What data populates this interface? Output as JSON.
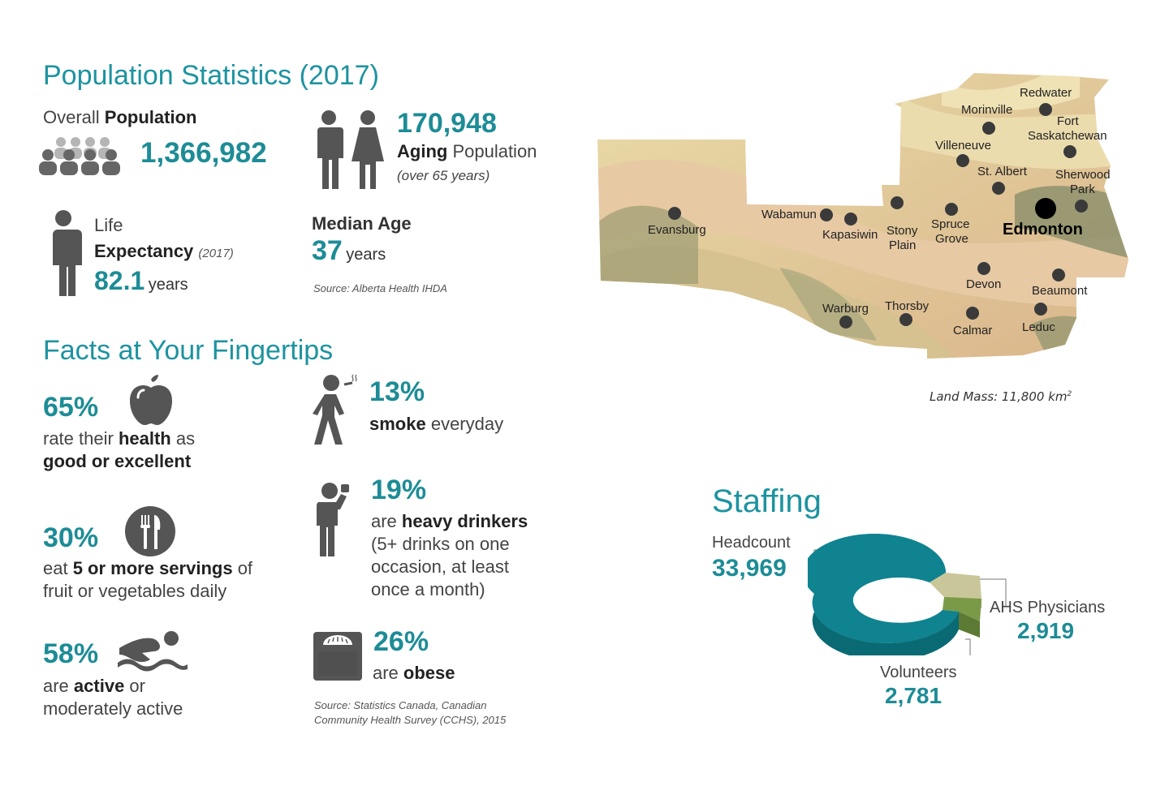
{
  "population": {
    "title": "Population Statistics (2017)",
    "overall_label_light": "Overall ",
    "overall_label_bold": "Population",
    "overall_value": "1,366,982",
    "aging_value": "170,948",
    "aging_bold": "Aging",
    "aging_light": " Population",
    "aging_note": "(over 65 years)",
    "life_label_1": "Life",
    "life_label_bold": "Expectancy",
    "life_label_year": "(2017)",
    "life_value": "82.1",
    "life_unit": "years",
    "median_label": "Median Age",
    "median_value": "37",
    "median_unit": "years",
    "source": "Source: Alberta Health IHDA"
  },
  "facts": {
    "title": "Facts at Your Fingertips",
    "health_pct": "65%",
    "health_l1a": "rate their ",
    "health_l1b": "health",
    "health_l1c": " as",
    "health_l2": "good or excellent",
    "smoke_pct": "13%",
    "smoke_bold": "smoke",
    "smoke_light": " everyday",
    "fruit_pct": "30%",
    "fruit_l1a": "eat ",
    "fruit_l1b": "5 or more servings",
    "fruit_l1c": " of",
    "fruit_l2": "fruit or vegetables daily",
    "drink_pct": "19%",
    "drink_l1a": "are ",
    "drink_l1b": "heavy drinkers",
    "drink_l2": "(5+ drinks on one",
    "drink_l3": "occasion, at least",
    "drink_l4": "once a month)",
    "active_pct": "58%",
    "active_l1a": "are ",
    "active_l1b": "active",
    "active_l1c": " or",
    "active_l2": "moderately active",
    "obese_pct": "26%",
    "obese_l1a": "are ",
    "obese_l1b": "obese",
    "source_l1": "Source: Statistics Canada, Canadian",
    "source_l2": "Community Health Survey (CCHS), 2015"
  },
  "map": {
    "land_mass": "Land Mass: 11,800 km",
    "land_mass_sup": "2",
    "cities": {
      "redwater": "Redwater",
      "morinville": "Morinville",
      "fort": "Fort",
      "saskatchewan": "Saskatchewan",
      "villeneuve": "Villeneuve",
      "st_albert": "St. Albert",
      "sherwood": "Sherwood",
      "park": "Park",
      "evansburg": "Evansburg",
      "wabamun": "Wabamun",
      "kapasiwin": "Kapasiwin",
      "stony": "Stony",
      "plain": "Plain",
      "spruce": "Spruce",
      "grove": "Grove",
      "edmonton": "Edmonton",
      "devon": "Devon",
      "beaumont": "Beaumont",
      "warburg": "Warburg",
      "thorsby": "Thorsby",
      "calmar": "Calmar",
      "leduc": "Leduc"
    }
  },
  "staffing": {
    "title": "Staffing",
    "headcount_label": "Headcount",
    "headcount_value": "33,969",
    "physicians_label": "AHS Physicians",
    "physicians_value": "2,919",
    "volunteers_label": "Volunteers",
    "volunteers_value": "2,781",
    "colors": {
      "headcount": "#0f8390",
      "physicians": "#c9c79a",
      "volunteers": "#7a9a48"
    }
  }
}
